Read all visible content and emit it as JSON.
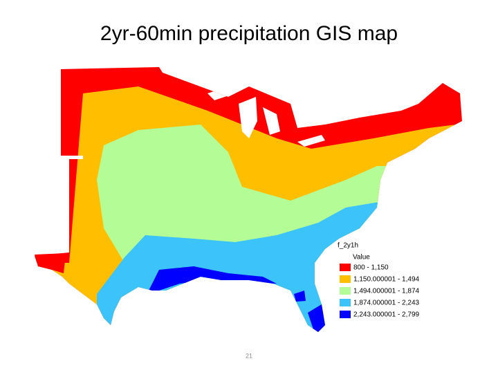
{
  "title": "2yr-60min precipitation GIS map",
  "legend": {
    "title": "f_2y1h",
    "subtitle": "Value",
    "items": [
      {
        "label": "800 - 1,150",
        "color": "#ff0000"
      },
      {
        "label": "1,150.000001 - 1,494",
        "color": "#ffbe00"
      },
      {
        "label": "1,494.000001 - 1,874",
        "color": "#b4fc96"
      },
      {
        "label": "1,874.000001 - 2,243",
        "color": "#3cc3fa"
      },
      {
        "label": "2,243.000001 - 2,799",
        "color": "#0000ff"
      }
    ]
  },
  "page_number": "21"
}
